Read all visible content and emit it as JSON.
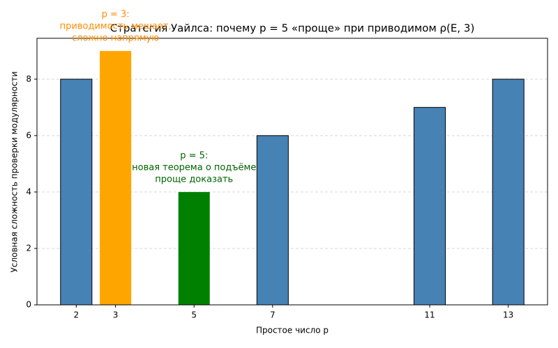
{
  "chart_data": {
    "type": "bar",
    "title": "Стратегия Уайлса: почему p = 5 «проще» при приводимом ρ(E, 3)",
    "x_label": "Простое число p",
    "y_label": "Условная сложность проверки модулярности",
    "x": [
      2,
      3,
      5,
      7,
      11,
      13
    ],
    "values": [
      8,
      9,
      4,
      6,
      7,
      8
    ],
    "colors": [
      "#4682b4",
      "#ffa500",
      "#008000",
      "#4682b4",
      "#4682b4",
      "#4682b4"
    ],
    "edgecolors": [
      "#000000",
      "none",
      "none",
      "#000000",
      "#000000",
      "#000000"
    ],
    "bar_width": 0.8,
    "xlim": [
      1,
      14
    ],
    "xticks": [
      2,
      3,
      5,
      7,
      11,
      13
    ],
    "ylim": [
      0,
      9.45
    ],
    "yticks": [
      0,
      2,
      4,
      6,
      8
    ],
    "grid": true,
    "annotations": [
      {
        "x": 3,
        "color": "#ff8c00",
        "lines": [
          "p = 3:",
          "приводимость мешает,",
          "сложно напрямую"
        ]
      },
      {
        "x": 5,
        "color": "#006400",
        "lines": [
          "p = 5:",
          "новая теорема о подъёме",
          "проще доказать"
        ]
      }
    ]
  }
}
